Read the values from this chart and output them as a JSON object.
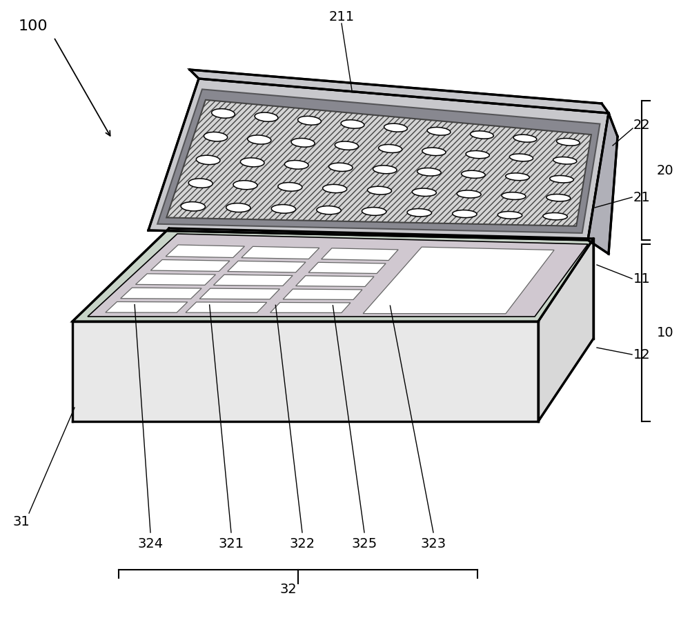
{
  "bg_color": "#ffffff",
  "line_color": "#000000",
  "circles_rows": 5,
  "circles_cols": 9,
  "lid_hatch_color": "#c8c8c8",
  "base_pcb_color": "#c8d4c8",
  "base_pcb_color2": "#d0c8d0",
  "lid_frame_color": "#c8c8cc",
  "lid_inner_color": "#d0d0d0",
  "lid_dark_strip": "#888890",
  "lid_side_color": "#b0b0b8",
  "box_front_color": "#e8e8e8",
  "box_right_color": "#d8d8d8",
  "module_fill": "#ffffff",
  "module_edge": "#666666",
  "fs": 14,
  "fs_main": 16
}
